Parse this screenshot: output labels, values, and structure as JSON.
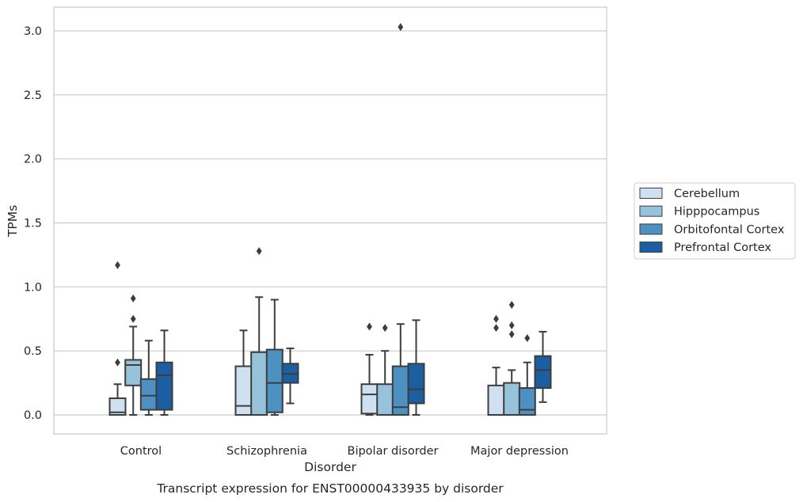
{
  "caption": "Transcript expression for ENST00000433935 by disorder",
  "chart_data": {
    "type": "boxplot",
    "xlabel": "Disorder",
    "ylabel": "TPMs",
    "ylim": [
      -0.15,
      3.18
    ],
    "yticks": [
      "0.0",
      "0.5",
      "1.0",
      "1.5",
      "2.0",
      "2.5",
      "3.0"
    ],
    "ytick_values": [
      0,
      0.5,
      1.0,
      1.5,
      2.0,
      2.5,
      3.0
    ],
    "grid": "horizontal",
    "legend_position": "right",
    "categories": [
      "Control",
      "Schizophrenia",
      "Bipolar disorder",
      "Major depression"
    ],
    "series": [
      {
        "name": "Cerebellum",
        "color": "#cfe0f1",
        "boxes": [
          {
            "min": 0.0,
            "q1": 0.0,
            "median": 0.02,
            "q3": 0.13,
            "max": 0.24,
            "outliers": [
              0.41,
              1.17
            ]
          },
          {
            "min": 0.0,
            "q1": 0.0,
            "median": 0.07,
            "q3": 0.38,
            "max": 0.66,
            "outliers": []
          },
          {
            "min": 0.0,
            "q1": 0.01,
            "median": 0.16,
            "q3": 0.24,
            "max": 0.47,
            "outliers": [
              0.69
            ]
          },
          {
            "min": 0.0,
            "q1": 0.0,
            "median": 0.0,
            "q3": 0.23,
            "max": 0.37,
            "outliers": [
              0.68,
              0.75
            ]
          }
        ]
      },
      {
        "name": "Hipppocampus",
        "color": "#97c2dc",
        "boxes": [
          {
            "min": 0.0,
            "q1": 0.23,
            "median": 0.39,
            "q3": 0.43,
            "max": 0.69,
            "outliers": [
              0.75,
              0.91
            ]
          },
          {
            "min": 0.0,
            "q1": 0.0,
            "median": 0.0,
            "q3": 0.49,
            "max": 0.92,
            "outliers": [
              1.28
            ]
          },
          {
            "min": 0.0,
            "q1": 0.0,
            "median": 0.0,
            "q3": 0.24,
            "max": 0.5,
            "outliers": [
              0.68
            ]
          },
          {
            "min": 0.0,
            "q1": 0.0,
            "median": 0.0,
            "q3": 0.25,
            "max": 0.35,
            "outliers": [
              0.63,
              0.7,
              0.86
            ]
          }
        ]
      },
      {
        "name": "Orbitofontal Cortex",
        "color": "#4c91c1",
        "boxes": [
          {
            "min": 0.0,
            "q1": 0.04,
            "median": 0.15,
            "q3": 0.28,
            "max": 0.58,
            "outliers": []
          },
          {
            "min": 0.0,
            "q1": 0.02,
            "median": 0.25,
            "q3": 0.51,
            "max": 0.9,
            "outliers": []
          },
          {
            "min": 0.0,
            "q1": 0.0,
            "median": 0.06,
            "q3": 0.38,
            "max": 0.71,
            "outliers": [
              3.03
            ]
          },
          {
            "min": 0.0,
            "q1": 0.0,
            "median": 0.04,
            "q3": 0.21,
            "max": 0.41,
            "outliers": [
              0.6
            ]
          }
        ]
      },
      {
        "name": "Prefrontal Cortex",
        "color": "#1c5ea2",
        "boxes": [
          {
            "min": 0.0,
            "q1": 0.04,
            "median": 0.31,
            "q3": 0.41,
            "max": 0.66,
            "outliers": []
          },
          {
            "min": 0.09,
            "q1": 0.25,
            "median": 0.32,
            "q3": 0.4,
            "max": 0.52,
            "outliers": []
          },
          {
            "min": 0.0,
            "q1": 0.09,
            "median": 0.2,
            "q3": 0.4,
            "max": 0.74,
            "outliers": []
          },
          {
            "min": 0.1,
            "q1": 0.21,
            "median": 0.35,
            "q3": 0.46,
            "max": 0.65,
            "outliers": []
          }
        ]
      }
    ]
  }
}
